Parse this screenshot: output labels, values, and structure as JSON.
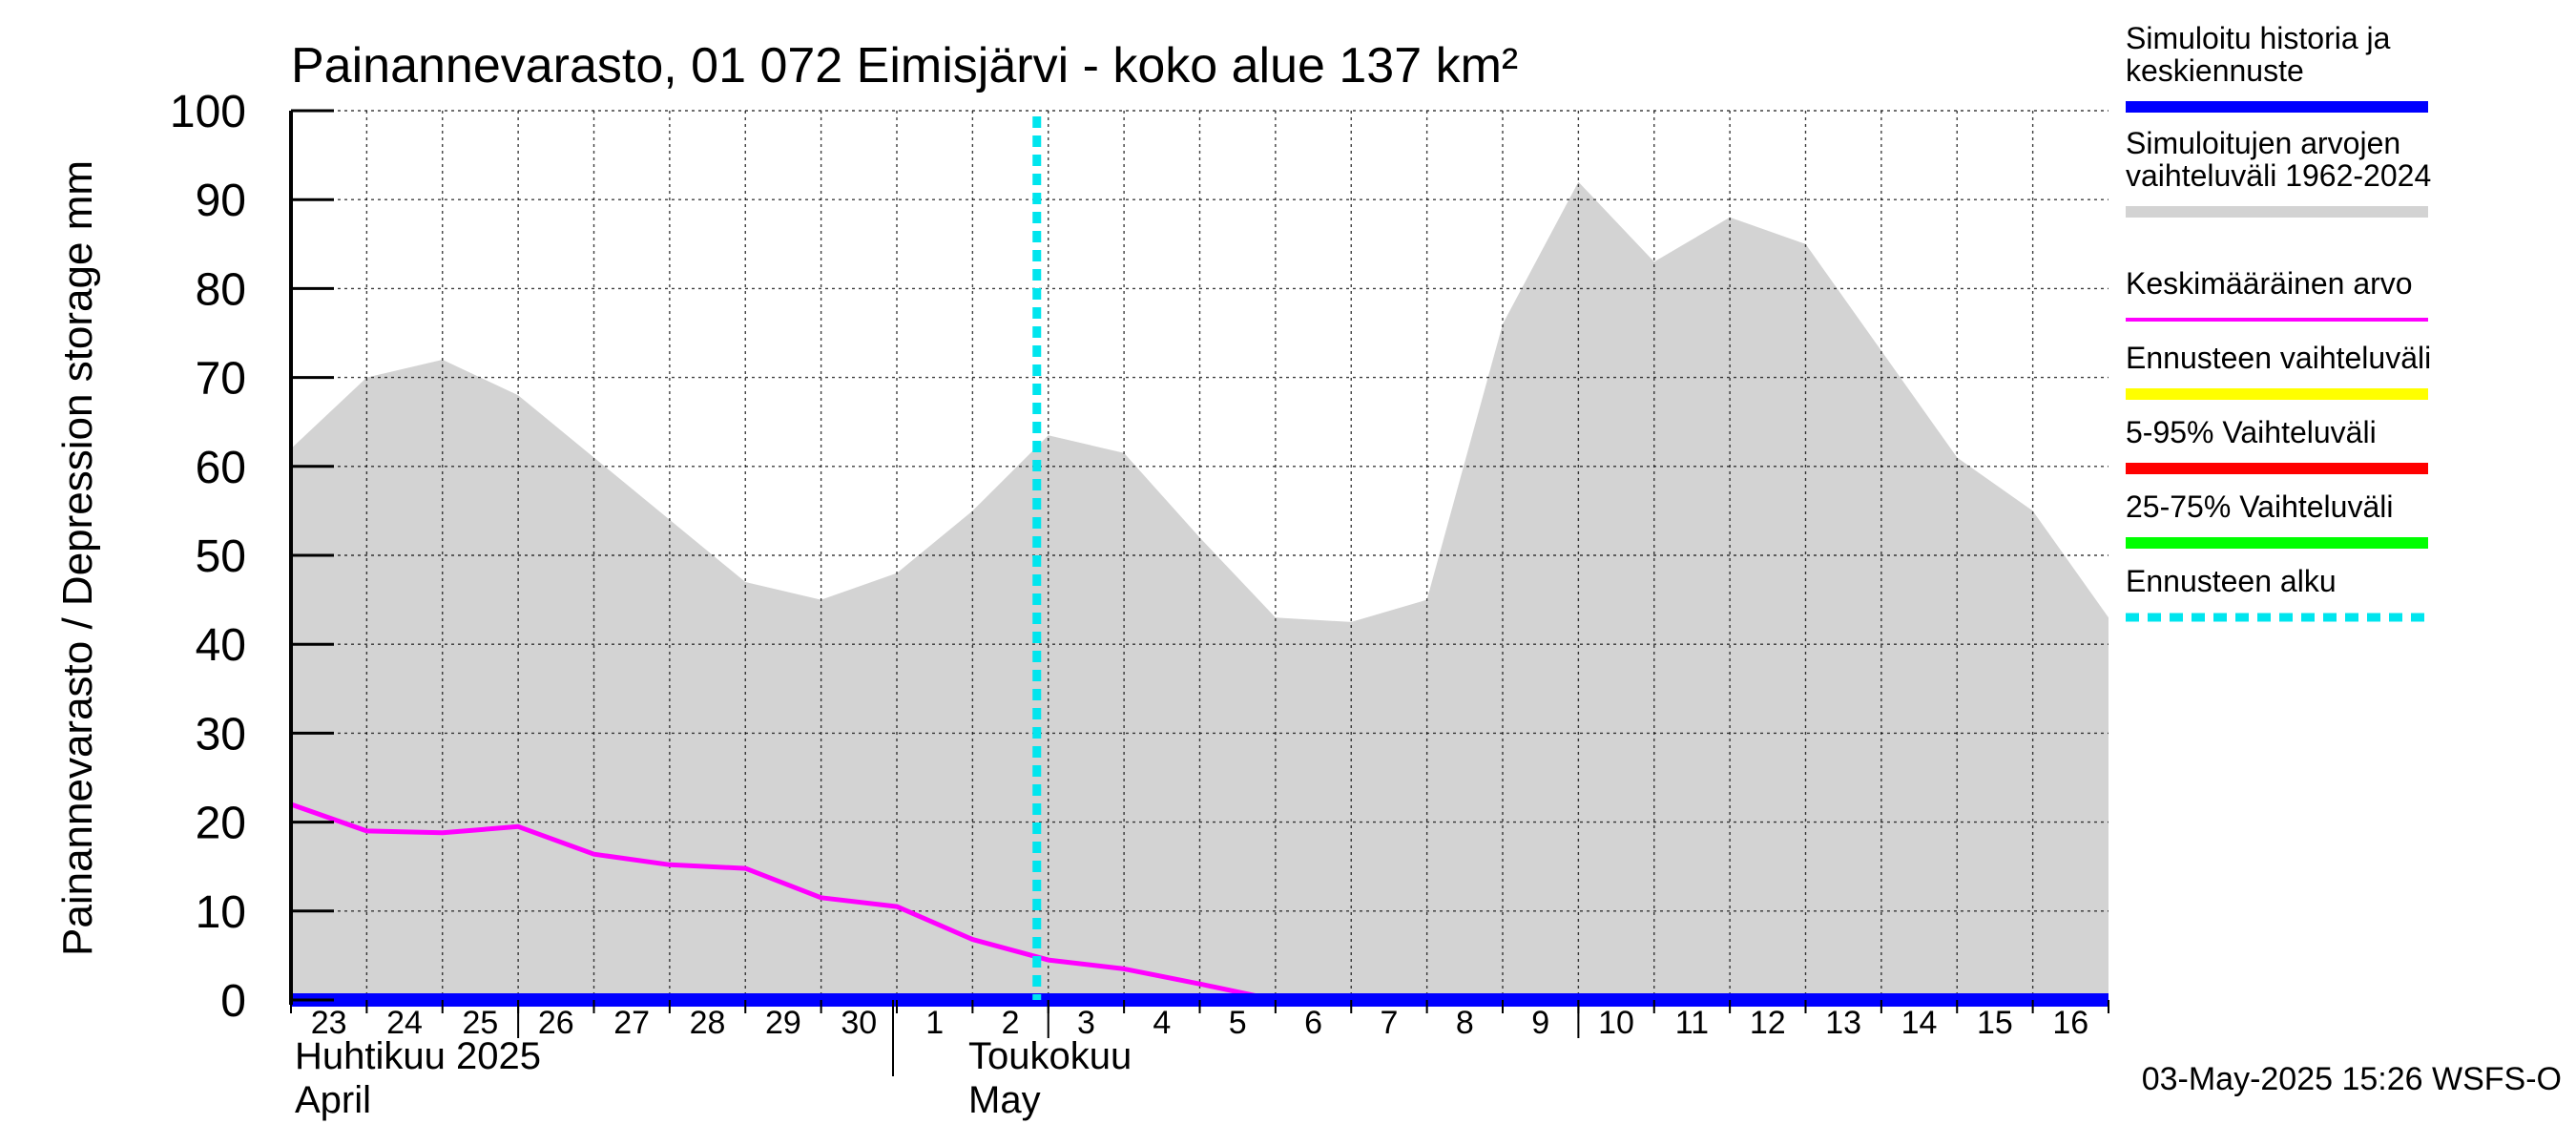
{
  "chart_data": {
    "type": "line",
    "title": "Painannevarasto, 01 072 Eimisjärvi - koko alue 137 km²",
    "ylabel": "Painannevarasto / Depression storage    mm",
    "ylim": [
      0,
      100
    ],
    "yticks": [
      "0",
      "10",
      "20",
      "30",
      "40",
      "50",
      "60",
      "70",
      "80",
      "90",
      "100"
    ],
    "x_dates": [
      "2025-04-23",
      "2025-04-24",
      "2025-04-25",
      "2025-04-26",
      "2025-04-27",
      "2025-04-28",
      "2025-04-29",
      "2025-04-30",
      "2025-05-01",
      "2025-05-02",
      "2025-05-03",
      "2025-05-04",
      "2025-05-05",
      "2025-05-06",
      "2025-05-07",
      "2025-05-08",
      "2025-05-09",
      "2025-05-10",
      "2025-05-11",
      "2025-05-12",
      "2025-05-13",
      "2025-05-14",
      "2025-05-15",
      "2025-05-16",
      "2025-05-17"
    ],
    "day_labels": [
      "23",
      "24",
      "25",
      "26",
      "27",
      "28",
      "29",
      "30",
      "1",
      "2",
      "3",
      "4",
      "5",
      "6",
      "7",
      "8",
      "9",
      "10",
      "11",
      "12",
      "13",
      "14",
      "15",
      "16"
    ],
    "month_labels": [
      {
        "line1": "Huhtikuu  2025",
        "line2": "April"
      },
      {
        "line1": "Toukokuu",
        "line2": "May"
      }
    ],
    "series": [
      {
        "name": "Simuloitujen arvojen vaihteluväli 1962-2024",
        "kind": "band",
        "color": "#d3d3d3",
        "lower": [
          0,
          0,
          0,
          0,
          0,
          0,
          0,
          0,
          0,
          0,
          0,
          0,
          0,
          0,
          0,
          0,
          0,
          0,
          0,
          0,
          0,
          0,
          0,
          0,
          0
        ],
        "upper": [
          62,
          70,
          72,
          68,
          61,
          54,
          47,
          45,
          48,
          55,
          63.5,
          61.5,
          52,
          43,
          42.5,
          45,
          76,
          92,
          83,
          88,
          85,
          73,
          61,
          55,
          43
        ]
      },
      {
        "name": "Keskimääräinen arvo",
        "kind": "line",
        "color": "#ff00ff",
        "values": [
          22,
          19,
          18.8,
          19.5,
          16.4,
          15.2,
          14.8,
          11.5,
          10.5,
          6.8,
          4.5,
          3.5,
          1.8,
          0,
          0,
          0,
          0,
          0,
          0,
          0,
          0,
          0,
          0,
          0,
          0
        ]
      },
      {
        "name": "Simuloitu historia ja keskiennuste",
        "kind": "line",
        "color": "#0000ff",
        "values": [
          0,
          0,
          0,
          0,
          0,
          0,
          0,
          0,
          0,
          0,
          0,
          0,
          0,
          0,
          0,
          0,
          0,
          0,
          0,
          0,
          0,
          0,
          0,
          0,
          0
        ]
      }
    ],
    "forecast_start": "2025-05-03",
    "grid": true,
    "legend_position": "right",
    "legend": [
      {
        "text": "Simuloitu historia ja keskiennuste",
        "color": "#0000ff",
        "style": "solid"
      },
      {
        "text": "Simuloitujen arvojen vaihteluväli 1962-2024",
        "color": "#d3d3d3",
        "style": "solid"
      },
      {
        "text": "Keskimääräinen arvo",
        "color": "#ff00ff",
        "style": "thin"
      },
      {
        "text": "Ennusteen vaihteluväli",
        "color": "#ffff00",
        "style": "solid"
      },
      {
        "text": "5-95% Vaihteluväli",
        "color": "#ff0000",
        "style": "solid"
      },
      {
        "text": "25-75% Vaihteluväli",
        "color": "#00ff00",
        "style": "solid"
      },
      {
        "text": "Ennusteen alku",
        "color": "#00e5ee",
        "style": "dashed"
      }
    ],
    "timestamp": "03-May-2025 15:26 WSFS-O"
  }
}
